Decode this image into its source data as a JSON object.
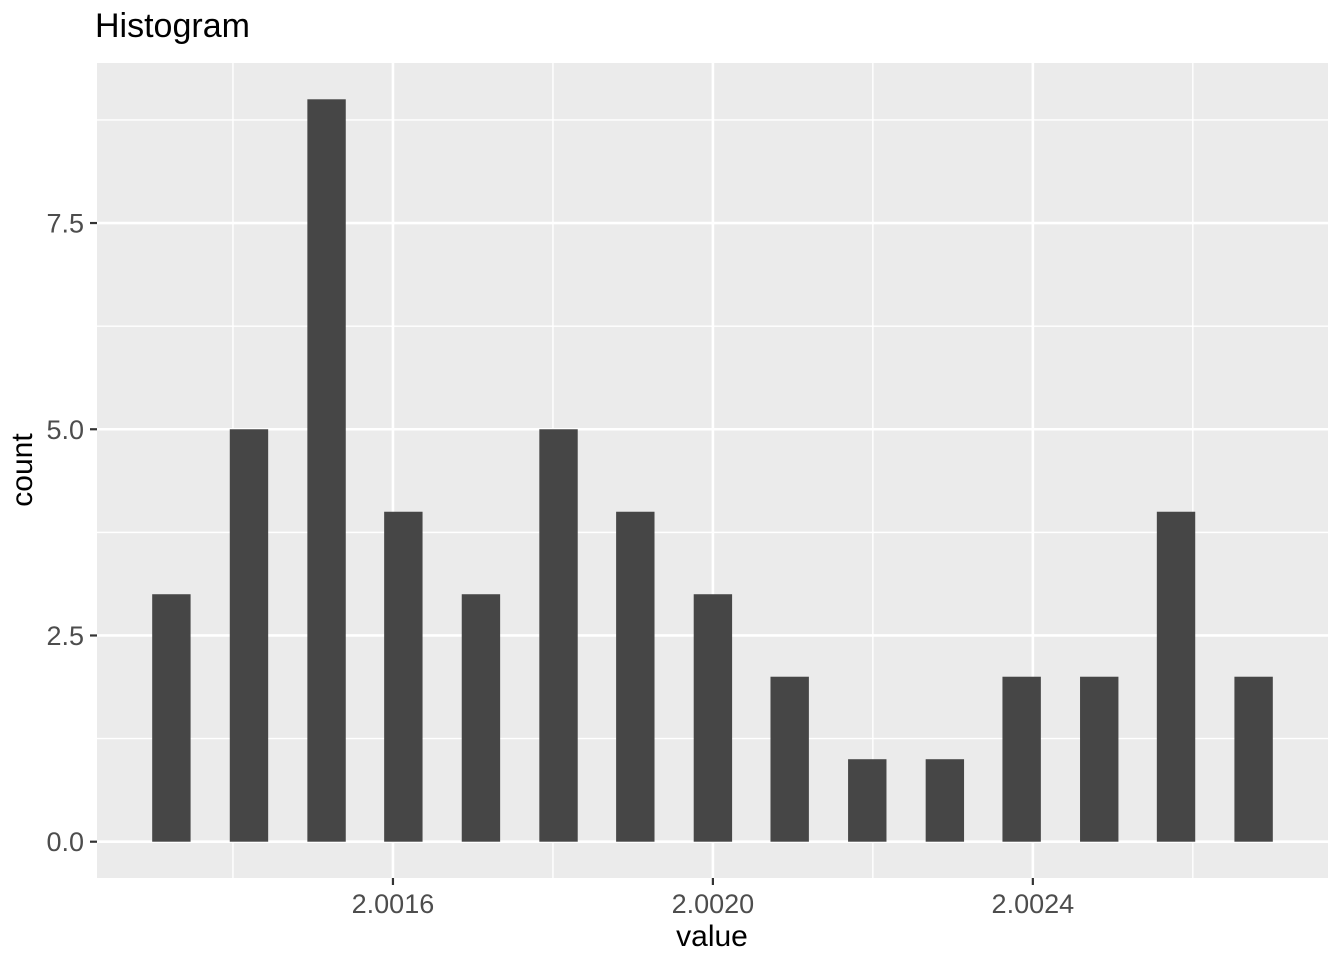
{
  "chart_data": {
    "type": "bar",
    "subtype": "histogram",
    "title": "Histogram",
    "xlabel": "value",
    "ylabel": "count",
    "bin_centers": [
      2.001323,
      2.00142,
      2.001517,
      2.001613,
      2.00171,
      2.001807,
      2.001903,
      2.002,
      2.002096,
      2.002193,
      2.00229,
      2.002386,
      2.002483,
      2.002579,
      2.002676
    ],
    "counts": [
      3,
      5,
      9,
      4,
      3,
      5,
      4,
      3,
      2,
      1,
      1,
      2,
      2,
      4,
      2
    ],
    "bar_width_value": 4.8e-05,
    "total_observations": 50,
    "xlim": [
      2.00123,
      2.002769
    ],
    "ylim": [
      -0.44,
      9.44
    ],
    "x_ticks": [
      2.0016,
      2.002,
      2.0024
    ],
    "x_tick_labels": [
      "2.0016",
      "2.0020",
      "2.0024"
    ],
    "x_minor_gridlines": [
      2.0014,
      2.0018,
      2.0022,
      2.0026
    ],
    "y_ticks": [
      0,
      2.5,
      5,
      7.5
    ],
    "y_tick_labels": [
      "0.0",
      "2.5",
      "5.0",
      "7.5"
    ],
    "y_minor_gridlines": [
      1.25,
      3.75,
      6.25,
      8.75
    ],
    "grid": true,
    "legend_position": "none",
    "colors": {
      "bar_fill": "#464646",
      "panel_background": "#EBEBEB",
      "gridline_major": "#FFFFFF",
      "gridline_minor": "#FFFFFF",
      "tick_label": "#4D4D4D",
      "tick_mark": "#333333",
      "title_text": "#000000",
      "axis_title_text": "#000000",
      "page_background": "#FFFFFF"
    }
  }
}
